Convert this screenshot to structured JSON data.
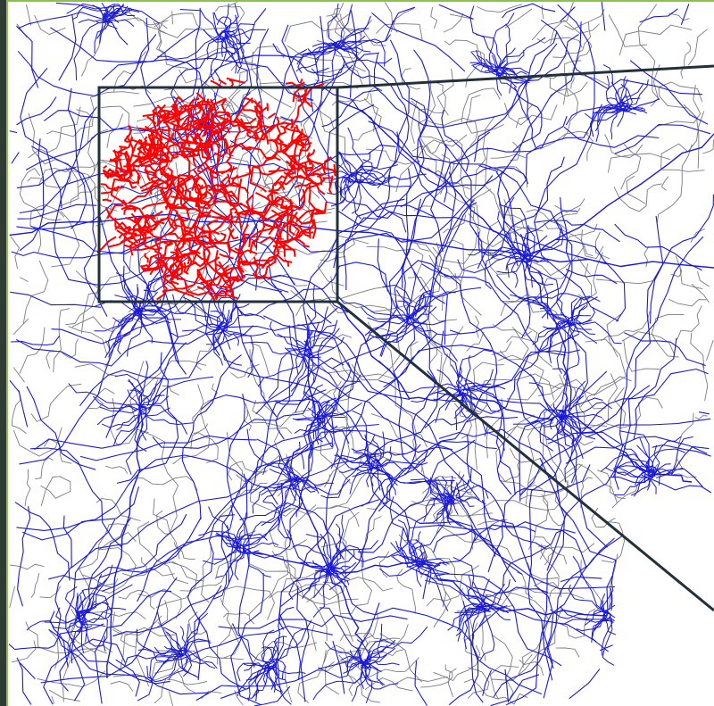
{
  "map": {
    "colors": {
      "road_primary": "#1a1ad6",
      "road_secondary": "#7a7a86",
      "highlight_network": "#ff0000",
      "zoom_frame": "#22303a",
      "left_bar": "#2f3b33",
      "accent": "#8bc34a",
      "background": "#ffffff"
    },
    "highlight": {
      "description_visible": false
    },
    "layers": [
      "road-network",
      "highlight-cluster",
      "zoom-inset-frame"
    ]
  }
}
